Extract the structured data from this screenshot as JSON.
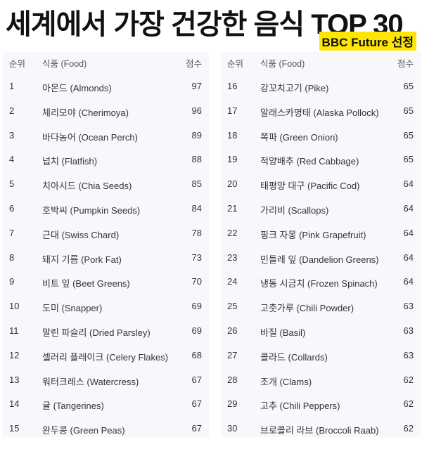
{
  "title": "세계에서 가장 건강한 음식 TOP 30",
  "badge": "BBC Future 선정",
  "accent_color": "#ffe600",
  "columns": {
    "rank": "순위",
    "food": "식품 (Food)",
    "score": "점수"
  },
  "left": [
    {
      "rank": "1",
      "food": "아몬드 (Almonds)",
      "score": "97"
    },
    {
      "rank": "2",
      "food": "체리모야 (Cherimoya)",
      "score": "96"
    },
    {
      "rank": "3",
      "food": "바다농어 (Ocean Perch)",
      "score": "89"
    },
    {
      "rank": "4",
      "food": "넙치 (Flatfish)",
      "score": "88"
    },
    {
      "rank": "5",
      "food": "치아시드 (Chia Seeds)",
      "score": "85"
    },
    {
      "rank": "6",
      "food": "호박씨 (Pumpkin Seeds)",
      "score": "84"
    },
    {
      "rank": "7",
      "food": "근대 (Swiss Chard)",
      "score": "78"
    },
    {
      "rank": "8",
      "food": "돼지 기름 (Pork Fat)",
      "score": "73"
    },
    {
      "rank": "9",
      "food": "비트 잎 (Beet Greens)",
      "score": "70"
    },
    {
      "rank": "10",
      "food": "도미 (Snapper)",
      "score": "69"
    },
    {
      "rank": "11",
      "food": "말린 파슬리 (Dried Parsley)",
      "score": "69"
    },
    {
      "rank": "12",
      "food": "셀러리 플레이크 (Celery Flakes)",
      "score": "68"
    },
    {
      "rank": "13",
      "food": "워터크레스 (Watercress)",
      "score": "67"
    },
    {
      "rank": "14",
      "food": "귤 (Tangerines)",
      "score": "67"
    },
    {
      "rank": "15",
      "food": "완두콩 (Green Peas)",
      "score": "67"
    }
  ],
  "right": [
    {
      "rank": "16",
      "food": "강꼬치고기 (Pike)",
      "score": "65"
    },
    {
      "rank": "17",
      "food": "알래스카명태 (Alaska Pollock)",
      "score": "65"
    },
    {
      "rank": "18",
      "food": "쪽파 (Green Onion)",
      "score": "65"
    },
    {
      "rank": "19",
      "food": "적양배추 (Red Cabbage)",
      "score": "65"
    },
    {
      "rank": "20",
      "food": "태평양 대구 (Pacific Cod)",
      "score": "64"
    },
    {
      "rank": "21",
      "food": "가리비 (Scallops)",
      "score": "64"
    },
    {
      "rank": "22",
      "food": "핑크 자몽 (Pink Grapefruit)",
      "score": "64"
    },
    {
      "rank": "23",
      "food": "민들레 잎 (Dandelion Greens)",
      "score": "64"
    },
    {
      "rank": "24",
      "food": "냉동 시금치 (Frozen Spinach)",
      "score": "64"
    },
    {
      "rank": "25",
      "food": "고춧가루 (Chili Powder)",
      "score": "63"
    },
    {
      "rank": "26",
      "food": "바질 (Basil)",
      "score": "63"
    },
    {
      "rank": "27",
      "food": "콜라드 (Collards)",
      "score": "63"
    },
    {
      "rank": "28",
      "food": "조개 (Clams)",
      "score": "62"
    },
    {
      "rank": "29",
      "food": "고추 (Chili Peppers)",
      "score": "62"
    },
    {
      "rank": "30",
      "food": "브로콜리 라브 (Broccoli Raab)",
      "score": "62"
    }
  ]
}
